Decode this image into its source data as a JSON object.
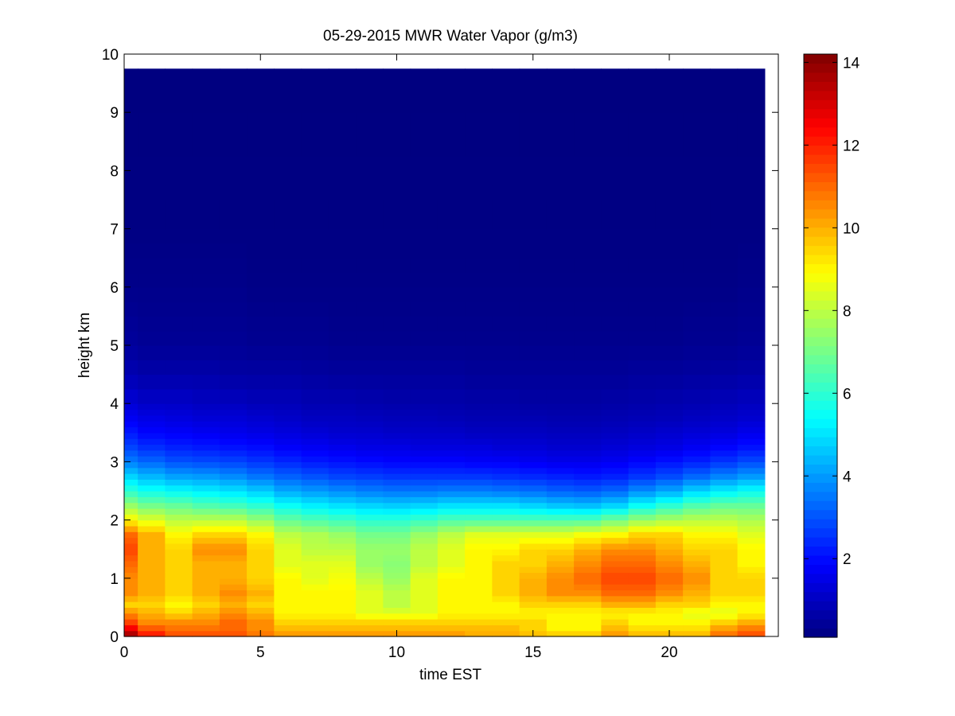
{
  "chart_data": {
    "type": "heatmap",
    "title": "05-29-2015 MWR Water Vapor (g/m3)",
    "xlabel": "time EST",
    "ylabel": "height km",
    "xlim": [
      0,
      24
    ],
    "ylim": [
      0,
      10
    ],
    "xticks": [
      0,
      5,
      10,
      15,
      20
    ],
    "yticks": [
      0,
      1,
      2,
      3,
      4,
      5,
      6,
      7,
      8,
      9,
      10
    ],
    "colorbar": {
      "colormap": "jet",
      "range": [
        0.1,
        14.2
      ],
      "ticks": [
        2,
        4,
        6,
        8,
        10,
        12,
        14
      ]
    },
    "grid": false,
    "x_centers": [
      0,
      1,
      2,
      3,
      4,
      5,
      6,
      7,
      8,
      9,
      10,
      11,
      12,
      13,
      14,
      15,
      16,
      17,
      18,
      19,
      20,
      21,
      22,
      23
    ],
    "data_extent": {
      "x_max": 23.5,
      "y_top": 9.75
    },
    "profile_heights_km": [
      0,
      0.1,
      0.25,
      0.4,
      0.55,
      0.75,
      1.0,
      1.25,
      1.5,
      1.75,
      2.0,
      2.25,
      2.5,
      2.75,
      3.0,
      3.25,
      3.5,
      3.75,
      4.0,
      4.5,
      5.0,
      6.0,
      7.0,
      9.75
    ],
    "profiles": [
      [
        14.0,
        13.0,
        11.5,
        10.5,
        9.5,
        10.5,
        10.5,
        11.0,
        11.5,
        11.0,
        9.0,
        7.5,
        6.0,
        4.8,
        3.6,
        2.8,
        2.2,
        1.7,
        1.3,
        0.8,
        0.5,
        0.25,
        0.15,
        0.1
      ],
      [
        12.5,
        11.5,
        10.5,
        10.0,
        9.5,
        10.0,
        10.0,
        10.0,
        10.0,
        10.0,
        8.5,
        7.0,
        5.6,
        4.4,
        3.3,
        2.5,
        1.9,
        1.5,
        1.1,
        0.7,
        0.4,
        0.25,
        0.15,
        0.1
      ],
      [
        11.5,
        11.0,
        10.5,
        9.5,
        9.0,
        9.5,
        9.5,
        9.5,
        9.5,
        9.0,
        8.0,
        6.8,
        5.4,
        4.1,
        3.0,
        2.3,
        1.8,
        1.4,
        1.1,
        0.7,
        0.4,
        0.25,
        0.15,
        0.1
      ],
      [
        11.5,
        11.0,
        10.5,
        10.0,
        9.5,
        10.0,
        10.0,
        10.0,
        10.5,
        9.5,
        8.0,
        6.5,
        5.2,
        4.0,
        2.9,
        2.2,
        1.7,
        1.3,
        1.0,
        0.7,
        0.4,
        0.25,
        0.15,
        0.1
      ],
      [
        11.5,
        11.0,
        11.0,
        10.5,
        10.0,
        10.5,
        10.0,
        10.0,
        10.5,
        9.5,
        8.0,
        6.3,
        5.0,
        3.8,
        2.8,
        2.1,
        1.6,
        1.3,
        1.0,
        0.6,
        0.4,
        0.25,
        0.15,
        0.1
      ],
      [
        11.0,
        10.5,
        10.5,
        10.0,
        9.5,
        10.0,
        9.5,
        9.5,
        9.5,
        9.0,
        7.5,
        6.0,
        4.7,
        3.5,
        2.6,
        2.0,
        1.5,
        1.2,
        0.9,
        0.6,
        0.35,
        0.2,
        0.15,
        0.1
      ],
      [
        10.5,
        10.0,
        9.5,
        9.0,
        9.0,
        9.0,
        9.0,
        8.5,
        8.5,
        8.0,
        6.8,
        5.5,
        4.2,
        3.2,
        2.4,
        1.8,
        1.4,
        1.1,
        0.9,
        0.6,
        0.35,
        0.2,
        0.15,
        0.1
      ],
      [
        10.5,
        10.0,
        9.5,
        9.0,
        9.0,
        9.0,
        8.5,
        8.5,
        8.0,
        7.8,
        6.5,
        5.2,
        4.0,
        3.0,
        2.2,
        1.7,
        1.3,
        1.0,
        0.8,
        0.55,
        0.35,
        0.2,
        0.15,
        0.1
      ],
      [
        10.5,
        10.0,
        9.5,
        9.0,
        9.0,
        9.0,
        8.8,
        8.5,
        8.0,
        7.5,
        6.3,
        5.0,
        3.8,
        2.8,
        2.1,
        1.6,
        1.2,
        1.0,
        0.8,
        0.5,
        0.3,
        0.2,
        0.15,
        0.1
      ],
      [
        10.5,
        10.0,
        9.5,
        8.5,
        8.5,
        8.5,
        8.0,
        7.5,
        7.5,
        7.0,
        6.0,
        4.8,
        3.6,
        2.7,
        2.0,
        1.5,
        1.2,
        0.95,
        0.75,
        0.5,
        0.3,
        0.2,
        0.15,
        0.1
      ],
      [
        10.5,
        10.0,
        9.5,
        8.5,
        8.0,
        8.0,
        7.5,
        7.3,
        7.5,
        7.0,
        6.0,
        4.7,
        3.5,
        2.6,
        1.9,
        1.5,
        1.1,
        0.9,
        0.7,
        0.5,
        0.3,
        0.2,
        0.15,
        0.1
      ],
      [
        10.5,
        10.0,
        9.5,
        8.5,
        8.5,
        8.5,
        8.5,
        8.0,
        8.0,
        7.5,
        6.2,
        4.8,
        3.5,
        2.6,
        1.9,
        1.4,
        1.1,
        0.9,
        0.7,
        0.5,
        0.3,
        0.2,
        0.15,
        0.1
      ],
      [
        10.5,
        10.0,
        9.5,
        9.0,
        9.0,
        9.0,
        9.0,
        8.5,
        8.5,
        8.0,
        6.5,
        5.0,
        3.6,
        2.6,
        1.9,
        1.4,
        1.1,
        0.85,
        0.7,
        0.5,
        0.3,
        0.2,
        0.15,
        0.1
      ],
      [
        10.0,
        10.0,
        9.5,
        9.0,
        9.0,
        9.0,
        9.0,
        9.0,
        9.0,
        8.5,
        6.5,
        5.0,
        3.6,
        2.6,
        1.8,
        1.4,
        1.0,
        0.8,
        0.65,
        0.45,
        0.3,
        0.2,
        0.15,
        0.1
      ],
      [
        10.0,
        10.0,
        9.5,
        9.0,
        9.0,
        9.5,
        9.5,
        9.5,
        9.0,
        8.5,
        6.5,
        5.0,
        3.5,
        2.5,
        1.8,
        1.3,
        1.0,
        0.8,
        0.65,
        0.45,
        0.3,
        0.2,
        0.15,
        0.1
      ],
      [
        10.0,
        9.5,
        9.5,
        9.0,
        9.5,
        10.0,
        10.0,
        9.5,
        9.5,
        8.5,
        6.5,
        4.8,
        3.4,
        2.4,
        1.7,
        1.3,
        1.0,
        0.8,
        0.6,
        0.45,
        0.3,
        0.2,
        0.15,
        0.1
      ],
      [
        10.0,
        9.0,
        9.0,
        9.0,
        9.5,
        10.5,
        10.5,
        10.0,
        9.5,
        8.5,
        6.5,
        4.6,
        3.2,
        2.3,
        1.6,
        1.2,
        0.95,
        0.75,
        0.6,
        0.45,
        0.3,
        0.2,
        0.15,
        0.1
      ],
      [
        10.0,
        9.0,
        9.0,
        9.0,
        9.5,
        10.5,
        11.0,
        10.5,
        10.0,
        8.8,
        6.5,
        4.5,
        3.1,
        2.2,
        1.6,
        1.2,
        0.95,
        0.75,
        0.6,
        0.45,
        0.3,
        0.2,
        0.15,
        0.1
      ],
      [
        10.5,
        10.0,
        9.5,
        9.0,
        10.0,
        11.0,
        11.5,
        11.0,
        10.5,
        9.0,
        7.0,
        4.8,
        3.3,
        2.3,
        1.7,
        1.3,
        1.0,
        0.8,
        0.65,
        0.45,
        0.3,
        0.2,
        0.15,
        0.1
      ],
      [
        10.0,
        9.5,
        9.0,
        9.0,
        10.0,
        11.0,
        11.5,
        11.0,
        10.5,
        9.5,
        7.5,
        5.5,
        3.8,
        2.6,
        1.9,
        1.4,
        1.1,
        0.85,
        0.7,
        0.5,
        0.3,
        0.2,
        0.15,
        0.1
      ],
      [
        10.0,
        9.5,
        9.0,
        9.0,
        9.5,
        10.5,
        11.0,
        10.5,
        10.0,
        9.5,
        7.8,
        6.0,
        4.2,
        2.9,
        2.1,
        1.5,
        1.2,
        0.9,
        0.75,
        0.5,
        0.3,
        0.2,
        0.15,
        0.1
      ],
      [
        10.0,
        9.5,
        9.0,
        8.5,
        9.5,
        10.0,
        10.5,
        10.0,
        9.5,
        9.0,
        8.0,
        6.5,
        4.8,
        3.3,
        2.3,
        1.7,
        1.3,
        1.0,
        0.8,
        0.55,
        0.35,
        0.2,
        0.15,
        0.1
      ],
      [
        11.0,
        10.5,
        9.5,
        8.5,
        9.0,
        9.5,
        9.5,
        9.5,
        9.5,
        9.0,
        8.0,
        6.8,
        5.2,
        3.7,
        2.6,
        1.9,
        1.4,
        1.1,
        0.9,
        0.6,
        0.35,
        0.2,
        0.15,
        0.1
      ],
      [
        11.5,
        11.0,
        10.0,
        9.0,
        9.0,
        9.5,
        9.5,
        9.0,
        9.0,
        8.5,
        7.8,
        6.8,
        5.5,
        4.0,
        2.9,
        2.1,
        1.6,
        1.2,
        1.0,
        0.65,
        0.4,
        0.25,
        0.15,
        0.1
      ]
    ]
  }
}
